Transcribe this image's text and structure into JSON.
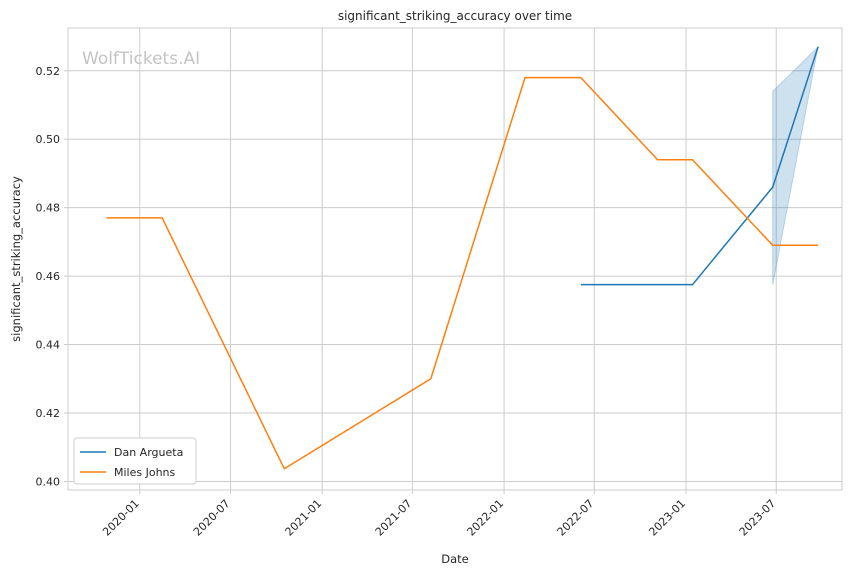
{
  "watermark": "WolfTickets.AI",
  "chart_data": {
    "type": "line",
    "title": "significant_striking_accuracy over time",
    "xlabel": "Date",
    "ylabel": "significant_striking_accuracy",
    "xlim": [
      "2019-08-10",
      "2023-11-10"
    ],
    "ylim": [
      0.3975,
      0.5325
    ],
    "x_ticks": [
      "2020-01",
      "2020-07",
      "2021-01",
      "2021-07",
      "2022-01",
      "2022-07",
      "2023-01",
      "2023-07"
    ],
    "y_ticks": [
      0.4,
      0.42,
      0.44,
      0.46,
      0.48,
      0.5,
      0.52
    ],
    "y_tick_labels": [
      "0.40",
      "0.42",
      "0.44",
      "0.46",
      "0.48",
      "0.50",
      "0.52"
    ],
    "grid": true,
    "legend_position": "lower-left",
    "series": [
      {
        "name": "Dan Argueta",
        "color": "#1f77b4",
        "points": [
          {
            "x": "2022-06-04",
            "y": 0.4575
          },
          {
            "x": "2023-01-14",
            "y": 0.4575
          },
          {
            "x": "2023-06-24",
            "y": 0.486
          },
          {
            "x": "2023-09-23",
            "y": 0.527
          }
        ],
        "band": [
          {
            "x": "2023-06-24",
            "low": 0.4575,
            "high": 0.514
          },
          {
            "x": "2023-09-23",
            "low": 0.527,
            "high": 0.527
          }
        ]
      },
      {
        "name": "Miles Johns",
        "color": "#ff7f0e",
        "points": [
          {
            "x": "2019-10-26",
            "y": 0.477
          },
          {
            "x": "2020-02-15",
            "y": 0.477
          },
          {
            "x": "2020-10-17",
            "y": 0.4037
          },
          {
            "x": "2021-08-07",
            "y": 0.43
          },
          {
            "x": "2022-02-12",
            "y": 0.518
          },
          {
            "x": "2022-06-04",
            "y": 0.518
          },
          {
            "x": "2022-11-05",
            "y": 0.494
          },
          {
            "x": "2023-01-14",
            "y": 0.494
          },
          {
            "x": "2023-06-24",
            "y": 0.469
          },
          {
            "x": "2023-09-23",
            "y": 0.469
          }
        ]
      }
    ]
  }
}
